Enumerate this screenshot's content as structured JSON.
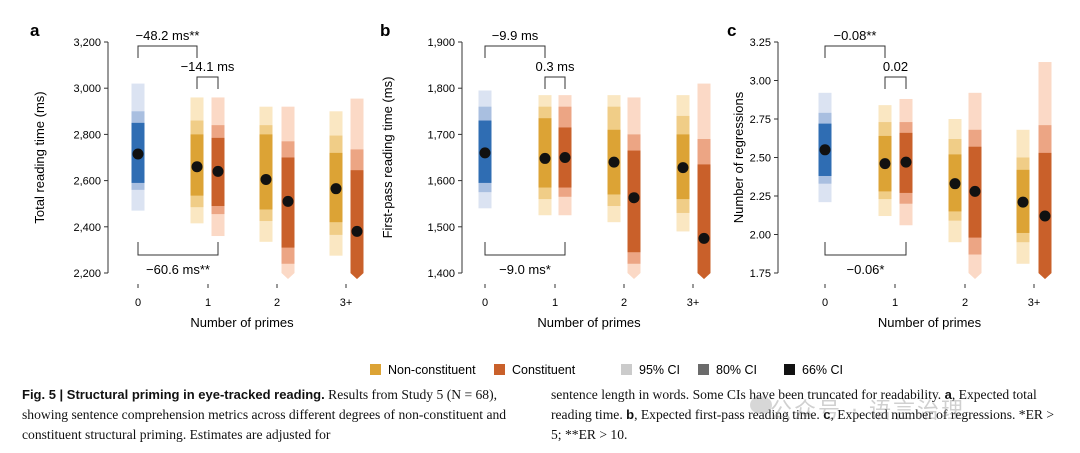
{
  "chart_data": [
    {
      "panel": "a",
      "type": "interval",
      "ylabel": "Total reading time (ms)",
      "xlabel": "Number of primes",
      "categories": [
        "0",
        "1",
        "2",
        "3+"
      ],
      "ylim": [
        2200,
        3200
      ],
      "yticks": [
        2200,
        2400,
        2600,
        2800,
        3000,
        3200
      ],
      "ytick_labels": [
        "2,200",
        "2,400",
        "2,600",
        "2,800",
        "3,000",
        "3,200"
      ],
      "baseline": {
        "category": "0",
        "mean": 2715,
        "ci95": [
          2470,
          3020
        ],
        "ci80": [
          2560,
          2900
        ],
        "ci66": [
          2590,
          2850
        ]
      },
      "series": [
        {
          "name": "Non-constituent",
          "points": [
            {
              "category": "1",
              "mean": 2660,
              "ci95": [
                2415,
                2960
              ],
              "ci80": [
                2485,
                2860
              ],
              "ci66": [
                2535,
                2800
              ]
            },
            {
              "category": "2",
              "mean": 2605,
              "ci95": [
                2335,
                2920
              ],
              "ci80": [
                2425,
                2840
              ],
              "ci66": [
                2475,
                2800
              ]
            },
            {
              "category": "3+",
              "mean": 2565,
              "ci95": [
                2275,
                2900
              ],
              "ci80": [
                2365,
                2795
              ],
              "ci66": [
                2420,
                2720
              ]
            }
          ]
        },
        {
          "name": "Constituent",
          "points": [
            {
              "category": "1",
              "mean": 2640,
              "ci95": [
                2360,
                2960
              ],
              "ci80": [
                2455,
                2840
              ],
              "ci66": [
                2490,
                2785
              ]
            },
            {
              "category": "2",
              "mean": 2510,
              "ci95": [
                2200,
                2920
              ],
              "ci80": [
                2240,
                2770
              ],
              "ci66": [
                2310,
                2700
              ]
            },
            {
              "category": "3+",
              "mean": 2380,
              "ci95": [
                2200,
                2955
              ],
              "ci80": [
                2200,
                2735
              ],
              "ci66": [
                2200,
                2645
              ]
            }
          ]
        }
      ],
      "annotations": [
        {
          "text": "−48.2 ms**",
          "from": "0",
          "to": "1-non",
          "side": "top",
          "level": 0
        },
        {
          "text": "−14.1 ms",
          "from": "1-non",
          "to": "1-con",
          "side": "top",
          "level": 1
        },
        {
          "text": "−60.6 ms**",
          "from": "0",
          "to": "1-con",
          "side": "bottom",
          "level": 0
        }
      ]
    },
    {
      "panel": "b",
      "type": "interval",
      "ylabel": "First-pass reading time (ms)",
      "xlabel": "Number of primes",
      "categories": [
        "0",
        "1",
        "2",
        "3+"
      ],
      "ylim": [
        1400,
        1900
      ],
      "yticks": [
        1400,
        1500,
        1600,
        1700,
        1800,
        1900
      ],
      "ytick_labels": [
        "1,400",
        "1,500",
        "1,600",
        "1,700",
        "1,800",
        "1,900"
      ],
      "baseline": {
        "category": "0",
        "mean": 1660,
        "ci95": [
          1540,
          1795
        ],
        "ci80": [
          1575,
          1760
        ],
        "ci66": [
          1595,
          1730
        ]
      },
      "series": [
        {
          "name": "Non-constituent",
          "points": [
            {
              "category": "1",
              "mean": 1648,
              "ci95": [
                1525,
                1785
              ],
              "ci80": [
                1560,
                1760
              ],
              "ci66": [
                1585,
                1735
              ]
            },
            {
              "category": "2",
              "mean": 1640,
              "ci95": [
                1510,
                1785
              ],
              "ci80": [
                1545,
                1760
              ],
              "ci66": [
                1570,
                1710
              ]
            },
            {
              "category": "3+",
              "mean": 1628,
              "ci95": [
                1490,
                1785
              ],
              "ci80": [
                1530,
                1740
              ],
              "ci66": [
                1560,
                1700
              ]
            }
          ]
        },
        {
          "name": "Constituent",
          "points": [
            {
              "category": "1",
              "mean": 1650,
              "ci95": [
                1525,
                1785
              ],
              "ci80": [
                1565,
                1760
              ],
              "ci66": [
                1585,
                1715
              ]
            },
            {
              "category": "2",
              "mean": 1563,
              "ci95": [
                1400,
                1780
              ],
              "ci80": [
                1420,
                1700
              ],
              "ci66": [
                1445,
                1665
              ]
            },
            {
              "category": "3+",
              "mean": 1475,
              "ci95": [
                1400,
                1810
              ],
              "ci80": [
                1400,
                1690
              ],
              "ci66": [
                1400,
                1635
              ]
            }
          ]
        }
      ],
      "annotations": [
        {
          "text": "−9.9 ms",
          "from": "0",
          "to": "1-non",
          "side": "top",
          "level": 0
        },
        {
          "text": "0.3 ms",
          "from": "1-non",
          "to": "1-con",
          "side": "top",
          "level": 1
        },
        {
          "text": "−9.0 ms*",
          "from": "0",
          "to": "1-con",
          "side": "bottom",
          "level": 0
        }
      ]
    },
    {
      "panel": "c",
      "type": "interval",
      "ylabel": "Number of regressions",
      "xlabel": "Number of primes",
      "categories": [
        "0",
        "1",
        "2",
        "3+"
      ],
      "ylim": [
        1.75,
        3.25
      ],
      "yticks": [
        1.75,
        2.0,
        2.25,
        2.5,
        2.75,
        3.0,
        3.25
      ],
      "ytick_labels": [
        "1.75",
        "2.00",
        "2.25",
        "2.50",
        "2.75",
        "3.00",
        "3.25"
      ],
      "baseline": {
        "category": "0",
        "mean": 2.55,
        "ci95": [
          2.21,
          2.92
        ],
        "ci80": [
          2.33,
          2.79
        ],
        "ci66": [
          2.38,
          2.72
        ]
      },
      "series": [
        {
          "name": "Non-constituent",
          "points": [
            {
              "category": "1",
              "mean": 2.46,
              "ci95": [
                2.12,
                2.84
              ],
              "ci80": [
                2.23,
                2.73
              ],
              "ci66": [
                2.28,
                2.64
              ]
            },
            {
              "category": "2",
              "mean": 2.33,
              "ci95": [
                1.95,
                2.75
              ],
              "ci80": [
                2.09,
                2.62
              ],
              "ci66": [
                2.15,
                2.52
              ]
            },
            {
              "category": "3+",
              "mean": 2.21,
              "ci95": [
                1.81,
                2.68
              ],
              "ci80": [
                1.95,
                2.5
              ],
              "ci66": [
                2.01,
                2.42
              ]
            }
          ]
        },
        {
          "name": "Constituent",
          "points": [
            {
              "category": "1",
              "mean": 2.47,
              "ci95": [
                2.06,
                2.88
              ],
              "ci80": [
                2.2,
                2.73
              ],
              "ci66": [
                2.27,
                2.66
              ]
            },
            {
              "category": "2",
              "mean": 2.28,
              "ci95": [
                1.75,
                2.92
              ],
              "ci80": [
                1.87,
                2.68
              ],
              "ci66": [
                1.98,
                2.57
              ]
            },
            {
              "category": "3+",
              "mean": 2.12,
              "ci95": [
                1.75,
                3.12
              ],
              "ci80": [
                1.75,
                2.71
              ],
              "ci66": [
                1.75,
                2.53
              ]
            }
          ]
        }
      ],
      "annotations": [
        {
          "text": "−0.08**",
          "from": "0",
          "to": "1-non",
          "side": "top",
          "level": 0
        },
        {
          "text": "0.02",
          "from": "1-non",
          "to": "1-con",
          "side": "top",
          "level": 1
        },
        {
          "text": "−0.06*",
          "from": "0",
          "to": "1-con",
          "side": "bottom",
          "level": 0
        }
      ]
    }
  ],
  "legend": {
    "items": [
      {
        "label": "Non-constituent",
        "color": "#dca335"
      },
      {
        "label": "Constituent",
        "color": "#c9602a"
      },
      {
        "label": "95% CI",
        "color": "#cbcbcb"
      },
      {
        "label": "80% CI",
        "color": "#6b6b6b"
      },
      {
        "label": "66% CI",
        "color": "#111111"
      }
    ]
  },
  "colors": {
    "baseline": {
      "ci95": "#dbe3f2",
      "ci80": "#a9bfe0",
      "ci66": "#2f6db3"
    },
    "non": {
      "ci95": "#fae7c2",
      "ci80": "#f0cd87",
      "ci66": "#dca335"
    },
    "con": {
      "ci95": "#fbd9c6",
      "ci80": "#eca584",
      "ci66": "#c9602a"
    },
    "mean": "#111111"
  },
  "caption": {
    "fig_label": "Fig. 5 | Structural priming in eye-tracked reading.",
    "left_text": "Results from Study 5 (N = 68), showing sentence comprehension metrics across different degrees of non-constituent and constituent structural priming. Estimates are adjusted for",
    "right_line1": "sentence length in words. Some CIs have been truncated for readability.",
    "right_a": "a",
    "right_a_text": ", Expected total reading time. ",
    "right_b": "b",
    "right_b_text": ", Expected first-pass reading time. ",
    "right_c": "c",
    "right_c_text": ", Expected number of regressions. *ER > 5; **ER > 10."
  },
  "watermark": "公众号 · 语言治理"
}
